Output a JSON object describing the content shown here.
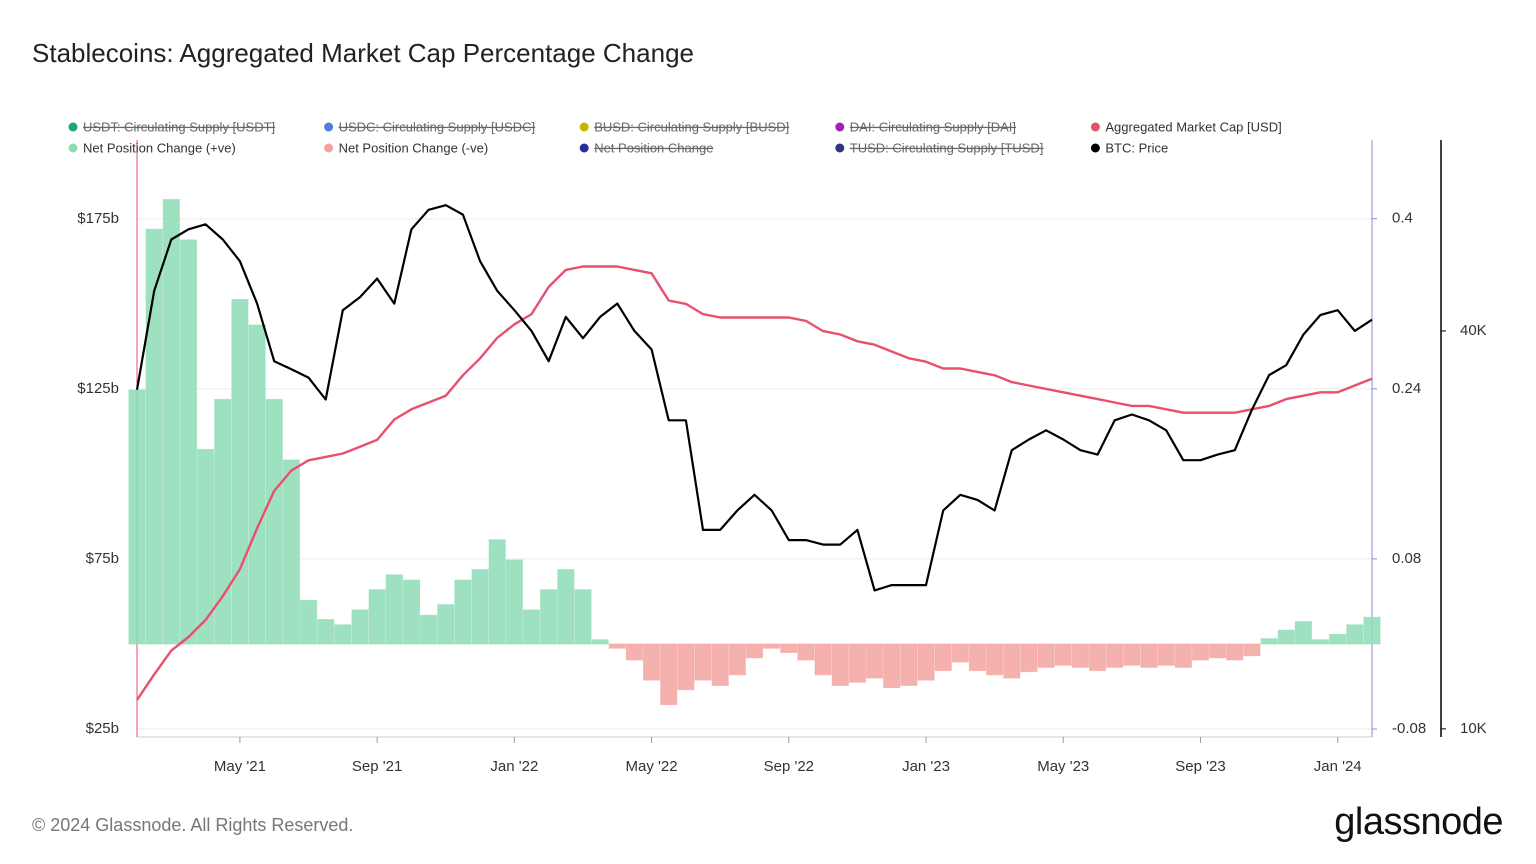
{
  "chart_data": {
    "type": "combo",
    "title": "Stablecoins: Aggregated Market Cap Percentage Change",
    "categories": [
      null,
      null,
      null,
      null,
      null,
      null,
      "May '21",
      null,
      null,
      null,
      null,
      null,
      null,
      null,
      "Sep '21",
      null,
      null,
      null,
      null,
      null,
      null,
      null,
      "Jan '22",
      null,
      null,
      null,
      null,
      null,
      null,
      null,
      "May '22",
      null,
      null,
      null,
      null,
      null,
      null,
      null,
      "Sep '22",
      null,
      null,
      null,
      null,
      null,
      null,
      null,
      "Jan '23",
      null,
      null,
      null,
      null,
      null,
      null,
      null,
      "May '23",
      null,
      null,
      null,
      null,
      null,
      null,
      null,
      "Sep '23",
      null,
      null,
      null,
      null,
      null,
      null,
      null,
      "Jan '24",
      null,
      null
    ],
    "series": [
      {
        "name": "USDT: Circulating Supply [USDT]",
        "color": "#1aa67a",
        "hidden": true
      },
      {
        "name": "USDC: Circulating Supply [USDC]",
        "color": "#4a7fe0",
        "hidden": true
      },
      {
        "name": "BUSD: Circulating Supply [BUSD]",
        "color": "#c8b400",
        "hidden": true
      },
      {
        "name": "DAI: Circulating Supply [DAI]",
        "color": "#a020b0",
        "hidden": true
      },
      {
        "name": "Aggregated Market Cap [USD]",
        "color": "#e8506e",
        "type": "line",
        "axis": "y",
        "values": [
          33.5,
          41,
          48,
          52,
          57,
          64,
          72,
          84,
          95,
          101,
          104,
          105,
          106,
          108,
          110,
          116,
          119,
          121,
          123,
          129,
          134,
          140,
          144,
          147,
          155,
          160,
          161,
          161,
          161,
          160,
          159,
          151,
          150,
          147,
          146,
          146,
          146,
          146,
          146,
          145,
          142,
          141,
          139,
          138,
          136,
          134,
          133,
          131,
          131,
          130,
          129,
          127,
          126,
          125,
          124,
          123,
          122,
          121,
          120,
          120,
          119,
          118,
          118,
          118,
          118,
          119,
          120,
          122,
          123,
          124,
          124,
          126,
          128
        ]
      },
      {
        "name": "Net Position Change (+ve)",
        "color": "#8ddcb6",
        "type": "bar",
        "axis": "y2",
        "values": [
          0.239,
          0.39,
          0.418,
          0.38,
          0.183,
          0.23,
          0.324,
          0.3,
          0.23,
          0.173,
          0.041,
          0.023,
          0.018,
          0.032,
          0.051,
          0.065,
          0.06,
          0.027,
          0.037,
          0.06,
          0.07,
          0.098,
          0.079,
          0.032,
          0.051,
          0.07,
          0.051,
          0.004,
          null,
          null,
          null,
          null,
          null,
          null,
          null,
          null,
          null,
          null,
          null,
          null,
          null,
          null,
          null,
          null,
          null,
          null,
          null,
          null,
          null,
          null,
          null,
          null,
          null,
          null,
          null,
          null,
          null,
          null,
          null,
          null,
          null,
          null,
          null,
          null,
          null,
          null,
          0.005,
          0.013,
          0.021,
          0.004,
          0.009,
          0.018,
          0.025
        ]
      },
      {
        "name": "Net Position Change (-ve)",
        "color": "#f3a3a0",
        "type": "bar",
        "axis": "y2",
        "values": [
          null,
          null,
          null,
          null,
          null,
          null,
          null,
          null,
          null,
          null,
          null,
          null,
          null,
          null,
          null,
          null,
          null,
          null,
          null,
          null,
          null,
          null,
          null,
          null,
          null,
          null,
          null,
          null,
          -0.004,
          -0.015,
          -0.034,
          -0.057,
          -0.043,
          -0.034,
          -0.039,
          -0.029,
          -0.013,
          -0.004,
          -0.008,
          -0.015,
          -0.029,
          -0.039,
          -0.036,
          -0.032,
          -0.041,
          -0.039,
          -0.034,
          -0.025,
          -0.017,
          -0.025,
          -0.029,
          -0.032,
          -0.026,
          -0.022,
          -0.02,
          -0.022,
          -0.025,
          -0.022,
          -0.02,
          -0.022,
          -0.02,
          -0.022,
          -0.015,
          -0.013,
          -0.015,
          -0.011,
          null,
          null,
          null,
          null,
          null,
          null,
          null
        ]
      },
      {
        "name": "Net Position Change",
        "color": "#2a2aa0",
        "hidden": true
      },
      {
        "name": "TUSD: Circulating Supply [TUSD]",
        "color": "#333380",
        "hidden": true
      },
      {
        "name": "BTC: Price",
        "color": "#000000",
        "type": "line",
        "axis": "y3",
        "values": [
          32600,
          46000,
          55000,
          57000,
          58000,
          55000,
          51000,
          44000,
          36000,
          35000,
          34000,
          31500,
          43000,
          45000,
          48000,
          44000,
          57000,
          61000,
          62000,
          60000,
          51000,
          46000,
          43000,
          40000,
          36000,
          42000,
          39000,
          42000,
          44000,
          40000,
          37500,
          29300,
          29300,
          20000,
          20000,
          21400,
          22600,
          21400,
          19300,
          19300,
          19000,
          19000,
          20000,
          16200,
          16500,
          16500,
          16500,
          21400,
          22600,
          22200,
          21400,
          26400,
          27400,
          28300,
          27400,
          26400,
          26000,
          29300,
          29900,
          29300,
          28300,
          25500,
          25500,
          26000,
          26400,
          30400,
          34300,
          35500,
          39500,
          42300,
          43000,
          40000,
          41600
        ]
      }
    ],
    "ylim": [
      22.6,
      198.2
    ],
    "yticks": [
      {
        "value": 25,
        "label": "$25b"
      },
      {
        "value": 75,
        "label": "$75b"
      },
      {
        "value": 125,
        "label": "$125b"
      },
      {
        "value": 175,
        "label": "$175b"
      }
    ],
    "y2lim": [
      -0.0875,
      0.474
    ],
    "y2ticks": [
      -0.08,
      0.08,
      0.24,
      0.4
    ],
    "y3lim": [
      9720,
      77800
    ],
    "y3scale": "log",
    "y3ticks": [
      {
        "value": 10000,
        "label": "10K"
      },
      {
        "value": 40000,
        "label": "40K"
      }
    ],
    "grid": true
  },
  "footer": {
    "copyright": "© 2024 Glassnode. All Rights Reserved.",
    "logo": "glassnode"
  }
}
